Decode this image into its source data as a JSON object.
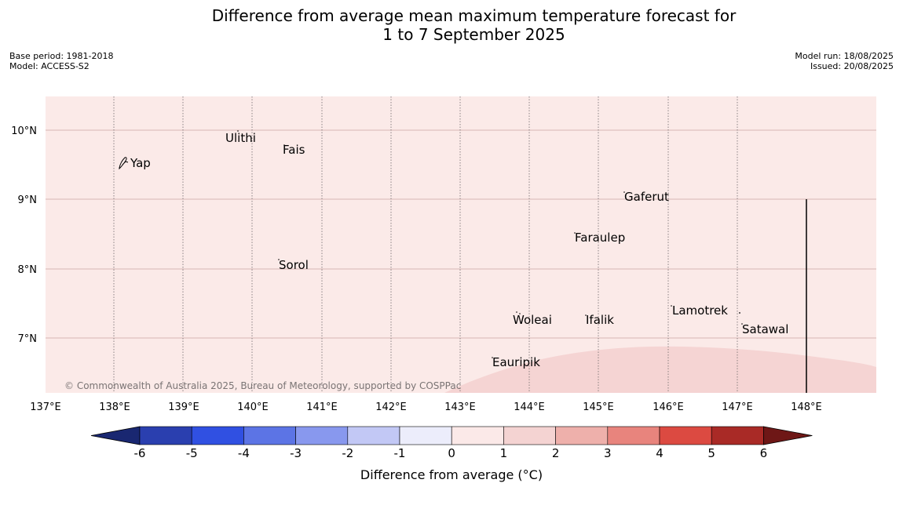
{
  "title_line1": "Difference from average mean maximum temperature forecast for",
  "title_line2": "1 to 7 September 2025",
  "base_period": "Base period: 1981-2018",
  "model": "Model: ACCESS-S2",
  "model_run": "Model run: 18/08/2025",
  "issued": "Issued: 20/08/2025",
  "copyright": "© Commonwealth of Australia 2025, Bureau of Meteorology, supported by COSPPac",
  "map": {
    "lon_labels": [
      "137°E",
      "138°E",
      "139°E",
      "140°E",
      "141°E",
      "142°E",
      "143°E",
      "144°E",
      "145°E",
      "146°E",
      "147°E",
      "148°E"
    ],
    "lat_labels": [
      "10°N",
      "9°N",
      "8°N",
      "7°N"
    ],
    "background_color": "#fbeae8",
    "warm_region_color": "#f5d4d3",
    "places": [
      {
        "name": "Yap"
      },
      {
        "name": "Ulithi"
      },
      {
        "name": "Fais"
      },
      {
        "name": "Gaferut"
      },
      {
        "name": "Faraulep"
      },
      {
        "name": "Sorol"
      },
      {
        "name": "Lamotrek"
      },
      {
        "name": "Woleai"
      },
      {
        "name": "Ifalik"
      },
      {
        "name": "Satawal"
      },
      {
        "name": "Eauripik"
      }
    ]
  },
  "colorbar": {
    "ticks": [
      "-6",
      "-5",
      "-4",
      "-3",
      "-2",
      "-1",
      "0",
      "1",
      "2",
      "3",
      "4",
      "5",
      "6"
    ],
    "colors": [
      "#192771",
      "#2a3faf",
      "#3050e2",
      "#5c74e5",
      "#8898ee",
      "#c2c8f5",
      "#ecedfb",
      "#fbe9e8",
      "#f4d3d2",
      "#eeb0ab",
      "#e8847d",
      "#dc4a41",
      "#a92a26",
      "#6e1716"
    ],
    "title": "Difference from average (°C)"
  }
}
